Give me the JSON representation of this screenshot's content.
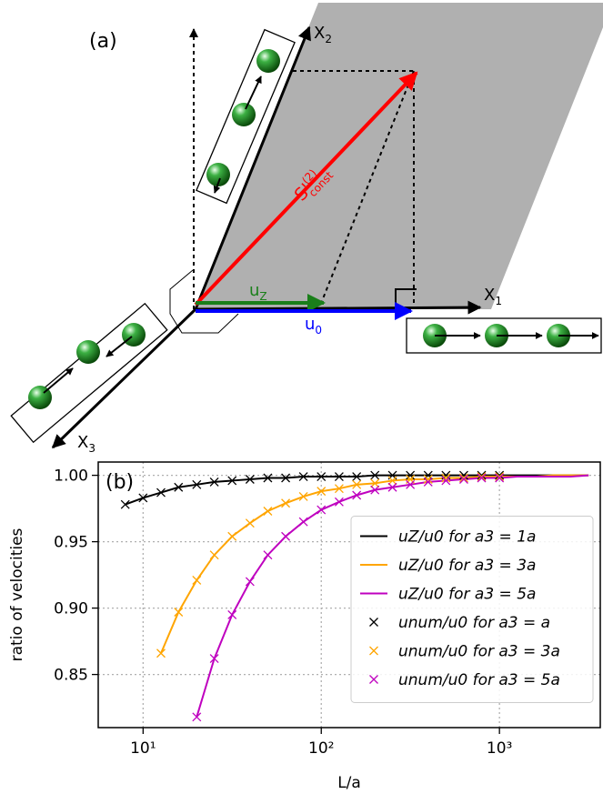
{
  "diagram": {
    "label": "(a)",
    "x1_label": {
      "base": "X",
      "sub": "1"
    },
    "x2_label": {
      "base": "X",
      "sub": "2"
    },
    "x3_label": {
      "base": "X",
      "sub": "3"
    },
    "uz_label": {
      "base": "u",
      "sub": "Z"
    },
    "u0_label": {
      "base": "u",
      "sub": "0"
    },
    "s_label": {
      "base": "S'",
      "sup": "(2)",
      "sub": "const"
    }
  },
  "chart_data": {
    "type": "line",
    "panel_label": "(b)",
    "xlabel": "L/a",
    "ylabel": "ratio of velocities",
    "xscale": "log",
    "xlim": [
      5.6,
      3680
    ],
    "ylim": [
      0.81,
      1.01
    ],
    "xticks": [
      {
        "value": 10,
        "label": "10¹"
      },
      {
        "value": 100,
        "label": "10²"
      },
      {
        "value": 1000,
        "label": "10³"
      }
    ],
    "yticks": [
      {
        "value": 0.85,
        "label": "0.85"
      },
      {
        "value": 0.9,
        "label": "0.90"
      },
      {
        "value": 0.95,
        "label": "0.95"
      },
      {
        "value": 1,
        "label": "1.00"
      }
    ],
    "grid": true,
    "legend": "center right",
    "series": [
      {
        "name": "uZ/u0 for a3 = 1a",
        "style": "line",
        "color": "#000000",
        "x": [
          7.94,
          10,
          12.6,
          15.8,
          20.0,
          25.1,
          31.6,
          39.8,
          50.1,
          63.1,
          79.4,
          100,
          126,
          158,
          200,
          251,
          316,
          398,
          501,
          631,
          794,
          1000,
          1259,
          1585,
          1995,
          2512,
          3162
        ],
        "values": [
          0.978,
          0.983,
          0.987,
          0.991,
          0.993,
          0.995,
          0.996,
          0.997,
          0.998,
          0.998,
          0.999,
          0.999,
          0.999,
          0.999,
          1.0,
          1.0,
          1.0,
          1.0,
          1.0,
          1.0,
          1.0,
          1.0,
          1.0,
          1.0,
          1.0,
          1.0,
          1.0
        ]
      },
      {
        "name": "uZ/u0 for a3 = 3a",
        "style": "line",
        "color": "#ffa500",
        "x": [
          12.6,
          15.8,
          20.0,
          25.1,
          31.6,
          39.8,
          50.1,
          63.1,
          79.4,
          100,
          126,
          158,
          200,
          251,
          316,
          398,
          501,
          631,
          794,
          1000,
          1259,
          1585,
          1995,
          2512,
          3162
        ],
        "values": [
          0.866,
          0.897,
          0.921,
          0.94,
          0.954,
          0.964,
          0.973,
          0.979,
          0.984,
          0.988,
          0.99,
          0.993,
          0.994,
          0.996,
          0.997,
          0.997,
          0.998,
          0.998,
          0.999,
          0.999,
          0.999,
          0.999,
          1.0,
          1.0,
          1.0
        ]
      },
      {
        "name": "uZ/u0 for a3 = 5a",
        "style": "line",
        "color": "#bf00bf",
        "x": [
          20.0,
          25.1,
          31.6,
          39.8,
          50.1,
          63.1,
          79.4,
          100,
          126,
          158,
          200,
          251,
          316,
          398,
          501,
          631,
          794,
          1000,
          1259,
          1585,
          1995,
          2512,
          3162
        ],
        "values": [
          0.818,
          0.862,
          0.895,
          0.92,
          0.94,
          0.954,
          0.965,
          0.974,
          0.98,
          0.985,
          0.989,
          0.991,
          0.993,
          0.995,
          0.996,
          0.997,
          0.998,
          0.998,
          0.999,
          0.999,
          0.999,
          0.999,
          1.0
        ]
      },
      {
        "name": "unum/u0 for a3 = a",
        "style": "marker",
        "color": "#000000",
        "x": [
          7.94,
          10,
          12.6,
          15.8,
          20.0,
          25.1,
          31.6,
          39.8,
          50.1,
          63.1,
          79.4,
          100,
          126,
          158,
          200,
          251,
          316,
          398,
          501,
          631,
          794,
          1000
        ],
        "values": [
          0.978,
          0.983,
          0.987,
          0.991,
          0.993,
          0.995,
          0.996,
          0.997,
          0.998,
          0.998,
          0.999,
          0.999,
          0.999,
          0.999,
          1.0,
          1.0,
          1.0,
          1.0,
          1.0,
          1.0,
          1.0,
          1.0
        ]
      },
      {
        "name": "unum/u0 for a3 = 3a",
        "style": "marker",
        "color": "#ffa500",
        "x": [
          12.6,
          15.8,
          20.0,
          25.1,
          31.6,
          39.8,
          50.1,
          63.1,
          79.4,
          100,
          126,
          158,
          200,
          251,
          316,
          398,
          501,
          631,
          794,
          1000
        ],
        "values": [
          0.866,
          0.897,
          0.921,
          0.94,
          0.954,
          0.964,
          0.973,
          0.979,
          0.984,
          0.988,
          0.99,
          0.993,
          0.994,
          0.996,
          0.997,
          0.997,
          0.998,
          0.998,
          0.999,
          0.999
        ]
      },
      {
        "name": "unum/u0 for a3 = 5a",
        "style": "marker",
        "color": "#bf00bf",
        "x": [
          20.0,
          25.1,
          31.6,
          39.8,
          50.1,
          63.1,
          79.4,
          100,
          126,
          158,
          200,
          251,
          316,
          398,
          501,
          631,
          794,
          1000
        ],
        "values": [
          0.818,
          0.862,
          0.895,
          0.92,
          0.94,
          0.954,
          0.965,
          0.974,
          0.98,
          0.985,
          0.989,
          0.991,
          0.993,
          0.995,
          0.996,
          0.997,
          0.998,
          0.998
        ]
      }
    ]
  }
}
